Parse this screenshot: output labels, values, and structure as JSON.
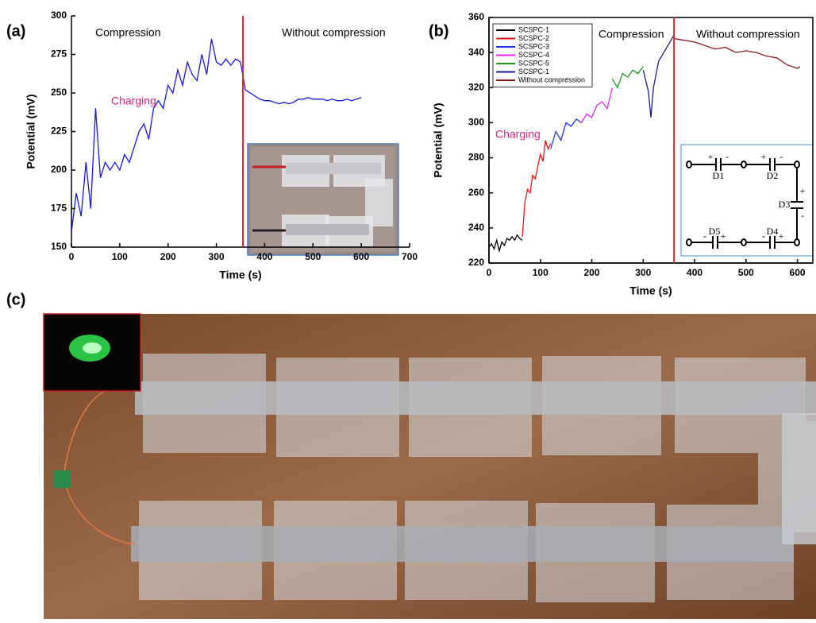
{
  "chart_data": [
    {
      "type": "line",
      "panel_label": "(a)",
      "xlabel": "Time (s)",
      "ylabel": "Potential (mV)",
      "xlim": [
        0,
        700
      ],
      "xticks": [
        0,
        100,
        200,
        300,
        400,
        500,
        600,
        700
      ],
      "ylim": [
        150,
        300
      ],
      "yticks": [
        150,
        175,
        200,
        225,
        250,
        275,
        300
      ],
      "marker_x": 355,
      "marker_color": "#e8202a",
      "annotations": [
        {
          "text": "Compression",
          "color": "#000000"
        },
        {
          "text": "Without compression",
          "color": "#000000"
        },
        {
          "text": "Charging",
          "color": "#e0207a"
        }
      ],
      "series": [
        {
          "name": null,
          "color": "#1515e8",
          "x": [
            0,
            10,
            20,
            30,
            40,
            50,
            60,
            70,
            80,
            90,
            100,
            110,
            120,
            130,
            140,
            150,
            160,
            170,
            180,
            190,
            200,
            210,
            220,
            230,
            240,
            250,
            260,
            270,
            280,
            290,
            300,
            310,
            320,
            330,
            340,
            350,
            360,
            370,
            380,
            390,
            400,
            410,
            420,
            430,
            440,
            450,
            460,
            470,
            480,
            490,
            500,
            510,
            520,
            530,
            540,
            550,
            560,
            570,
            580,
            590,
            600
          ],
          "values": [
            160,
            185,
            170,
            205,
            175,
            240,
            195,
            205,
            200,
            205,
            200,
            210,
            205,
            215,
            225,
            230,
            220,
            240,
            245,
            240,
            255,
            250,
            265,
            255,
            270,
            262,
            258,
            275,
            262,
            285,
            270,
            268,
            272,
            268,
            272,
            270,
            252,
            250,
            248,
            246,
            245,
            245,
            244,
            243,
            244,
            243,
            244,
            246,
            246,
            247,
            246,
            246,
            246,
            245,
            246,
            245,
            245,
            246,
            245,
            246,
            247
          ]
        }
      ]
    },
    {
      "type": "line",
      "panel_label": "(b)",
      "xlabel": "Time (s)",
      "ylabel": "Potential (mV)",
      "xlim": [
        0,
        630
      ],
      "xticks": [
        0,
        100,
        200,
        300,
        400,
        500,
        600
      ],
      "ylim": [
        220,
        360
      ],
      "yticks": [
        220,
        240,
        260,
        280,
        300,
        320,
        340,
        360
      ],
      "marker_x": 360,
      "marker_color": "#e8202a",
      "legend": "upper left",
      "annotations": [
        {
          "text": "Compression",
          "color": "#000000"
        },
        {
          "text": "Without compression",
          "color": "#000000"
        },
        {
          "text": "Charging",
          "color": "#e0207a"
        }
      ],
      "series": [
        {
          "name": "SCSPC-1",
          "color": "#000000",
          "x": [
            0,
            5,
            10,
            15,
            20,
            25,
            30,
            35,
            40,
            45,
            50,
            55,
            60,
            65
          ],
          "values": [
            229,
            231,
            228,
            233,
            227,
            232,
            230,
            234,
            233,
            235,
            233,
            236,
            234,
            233
          ]
        },
        {
          "name": "SCSPC-2",
          "color": "#ee1111",
          "x": [
            65,
            70,
            75,
            80,
            85,
            90,
            95,
            100,
            105,
            110,
            115,
            120
          ],
          "values": [
            235,
            255,
            262,
            260,
            270,
            268,
            275,
            282,
            278,
            290,
            285,
            288
          ]
        },
        {
          "name": "SCSPC-3",
          "color": "#2233ee",
          "x": [
            120,
            130,
            140,
            150,
            160,
            170,
            180
          ],
          "values": [
            285,
            295,
            290,
            300,
            298,
            302,
            300
          ]
        },
        {
          "name": "SCSPC-4",
          "color": "#ee22ee",
          "x": [
            180,
            190,
            200,
            210,
            220,
            230,
            240
          ],
          "values": [
            300,
            305,
            303,
            310,
            312,
            308,
            320
          ]
        },
        {
          "name": "SCSPC-5",
          "color": "#1a9a1a",
          "x": [
            240,
            250,
            260,
            270,
            280,
            290,
            300
          ],
          "values": [
            325,
            320,
            328,
            326,
            330,
            328,
            332
          ]
        },
        {
          "name": "SCSPC-1",
          "color": "#1a1a8c",
          "x": [
            300,
            310,
            315,
            320,
            330,
            340,
            350,
            360
          ],
          "values": [
            330,
            318,
            303,
            320,
            335,
            340,
            345,
            350
          ]
        },
        {
          "name": "Without compression",
          "color": "#8b1a1a",
          "x": [
            360,
            380,
            400,
            420,
            440,
            460,
            480,
            500,
            520,
            540,
            560,
            580,
            600,
            605
          ],
          "values": [
            348,
            347,
            346,
            344,
            342,
            343,
            340,
            341,
            340,
            338,
            337,
            333,
            331,
            332
          ]
        }
      ],
      "circuit": [
        {
          "name": "D1",
          "plus": "+",
          "minus": "-"
        },
        {
          "name": "D2",
          "plus": "+",
          "minus": "-"
        },
        {
          "name": "D3",
          "plus": "+",
          "minus": "-"
        },
        {
          "name": "D4",
          "plus": "+",
          "minus": "-"
        },
        {
          "name": "D5",
          "plus": "+",
          "minus": "-"
        }
      ]
    }
  ],
  "panel_c": {
    "label": "(c)"
  }
}
